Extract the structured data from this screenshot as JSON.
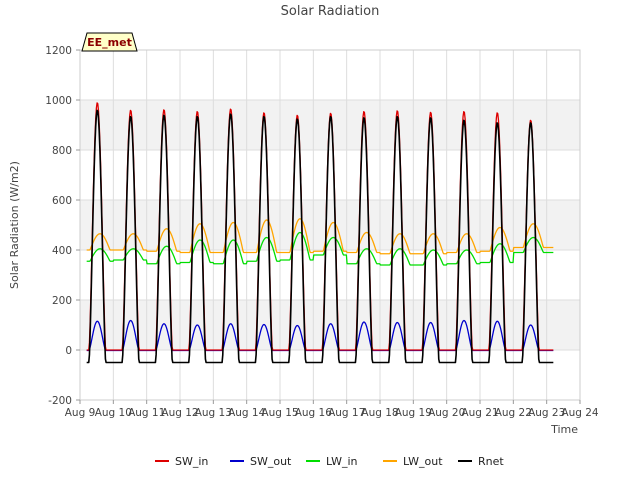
{
  "chart_data": {
    "type": "line",
    "title": "Solar Radiation",
    "xlabel": "Time",
    "ylabel": "Solar Radiation (W/m2)",
    "ylim": [
      -200,
      1200
    ],
    "xlim": [
      9,
      24
    ],
    "yticks": [
      -200,
      0,
      200,
      400,
      600,
      800,
      1000,
      1200
    ],
    "xticks": [
      {
        "value": 9,
        "label": "Aug 9"
      },
      {
        "value": 10,
        "label": "Aug 10"
      },
      {
        "value": 11,
        "label": "Aug 11"
      },
      {
        "value": 12,
        "label": "Aug 12"
      },
      {
        "value": 13,
        "label": "Aug 13"
      },
      {
        "value": 14,
        "label": "Aug 14"
      },
      {
        "value": 15,
        "label": "Aug 15"
      },
      {
        "value": 16,
        "label": "Aug 16"
      },
      {
        "value": 17,
        "label": "Aug 17"
      },
      {
        "value": 18,
        "label": "Aug 18"
      },
      {
        "value": 19,
        "label": "Aug 19"
      },
      {
        "value": 20,
        "label": "Aug 20"
      },
      {
        "value": 21,
        "label": "Aug 21"
      },
      {
        "value": 22,
        "label": "Aug 22"
      },
      {
        "value": 23,
        "label": "Aug 23"
      },
      {
        "value": 24,
        "label": "Aug 24"
      }
    ],
    "x_range_data": [
      9.2,
      23.2
    ],
    "grid": true,
    "shaded_bands": true,
    "legend_position": "bottom",
    "annotation": "EE_met",
    "days": [
      9,
      10,
      11,
      12,
      13,
      14,
      15,
      16,
      17,
      18,
      19,
      20,
      21,
      22
    ],
    "series": [
      {
        "name": "SW_in",
        "color": "#dd0000",
        "kind": "solar",
        "night": 0,
        "peaks": [
          990,
          960,
          962,
          955,
          965,
          950,
          940,
          948,
          955,
          958,
          952,
          955,
          950,
          920
        ]
      },
      {
        "name": "SW_out",
        "color": "#0000cc",
        "kind": "solar",
        "night": -2,
        "peaks": [
          115,
          118,
          105,
          100,
          105,
          102,
          98,
          105,
          112,
          110,
          110,
          118,
          115,
          100
        ]
      },
      {
        "name": "LW_in",
        "color": "#00dd00",
        "kind": "longwave",
        "night": [
          355,
          360,
          345,
          350,
          345,
          355,
          360,
          380,
          345,
          340,
          340,
          345,
          350,
          390
        ],
        "peaks": [
          405,
          405,
          415,
          440,
          440,
          450,
          470,
          450,
          405,
          405,
          400,
          400,
          425,
          450
        ]
      },
      {
        "name": "LW_out",
        "color": "#ffa500",
        "kind": "longwave",
        "night": [
          400,
          400,
          395,
          390,
          390,
          390,
          390,
          395,
          390,
          385,
          385,
          390,
          395,
          410
        ],
        "peaks": [
          465,
          465,
          485,
          505,
          510,
          520,
          525,
          510,
          470,
          465,
          465,
          465,
          490,
          505
        ]
      },
      {
        "name": "Rnet",
        "color": "#000000",
        "kind": "solar",
        "night": -50,
        "peaks": [
          960,
          935,
          940,
          935,
          945,
          935,
          925,
          935,
          930,
          935,
          930,
          920,
          910,
          910
        ]
      }
    ]
  }
}
